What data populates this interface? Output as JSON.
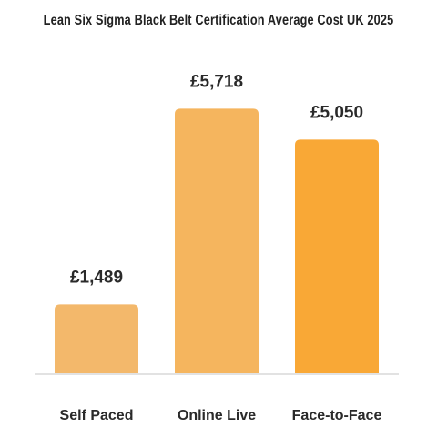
{
  "chart_data": {
    "type": "bar",
    "title": "Lean Six Sigma Black Belt Certification Average Cost UK 2025",
    "categories": [
      "Self Paced",
      "Online Live",
      "Face-to-Face"
    ],
    "values": [
      1489,
      5718,
      5050
    ],
    "data_labels": [
      "£1,489",
      "£5,718",
      "£5,050"
    ],
    "colors": [
      "#F3B86B",
      "#F5B55E",
      "#F9A836"
    ],
    "axis_color": "#D9D9D9",
    "ylim": [
      0,
      6100
    ],
    "grid": false,
    "legend": "none"
  }
}
